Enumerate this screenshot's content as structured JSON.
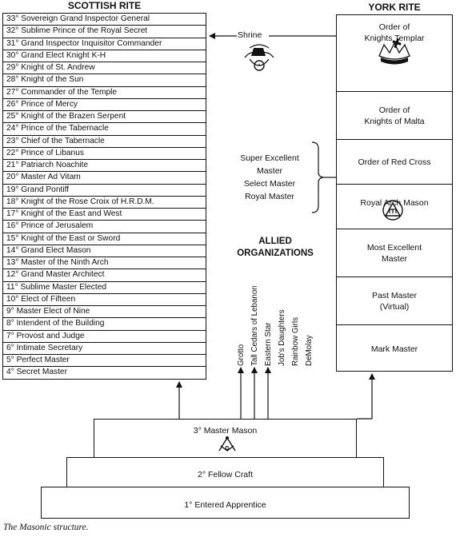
{
  "scottish_rite": {
    "title": "SCOTTISH RITE",
    "degrees": [
      "33° Sovereign Grand Inspector General",
      "32° Sublime Prince of the Royal Secret",
      "31° Grand Inspector Inquisitor Commander",
      "30° Grand Elect Knight K-H",
      "29° Knight of St. Andrew",
      "28° Knight of the Sun",
      "27° Commander of the Temple",
      "26° Prince of Mercy",
      "25° Knight of the Brazen Serpent",
      "24° Prince of the Tabernacle",
      "23° Chief of the Tabernacle",
      "22° Prince of Libanus",
      "21° Patriarch Noachite",
      "20° Master Ad Vitam",
      "19° Grand Pontiff",
      "18° Knight of the Rose Croix of H.R.D.M.",
      "17° Knight of the East and West",
      "16° Prince of Jerusalem",
      "15° Knight of the East or Sword",
      "14° Grand Elect Mason",
      "13° Master of the Ninth Arch",
      "12° Grand Master Architect",
      "11° Sublime Master Elected",
      "10° Elect of Fifteen",
      "9° Master Elect of Nine",
      "8° Intendent of the Building",
      "7° Provost and Judge",
      "6° Intimate Secretary",
      "5° Perfect Master",
      "4° Secret Master"
    ]
  },
  "york_rite": {
    "title": "YORK RITE",
    "cells": [
      {
        "line1": "Order of",
        "line2": "Knights Templar"
      },
      {
        "line1": "Order of",
        "line2": "Knights of Malta"
      },
      {
        "line1": "Order of Red Cross",
        "line2": ""
      },
      {
        "line1": "Royal Arch Mason",
        "line2": ""
      },
      {
        "line1": "Most Excellent",
        "line2": "Master"
      },
      {
        "line1": "Past Master",
        "line2": "(Virtual)"
      },
      {
        "line1": "Mark Master",
        "line2": ""
      }
    ]
  },
  "shrine": {
    "label": "Shrine"
  },
  "council": {
    "line1": "Super Excellent",
    "line2": "Master",
    "line3": "Select Master",
    "line4": "Royal Master"
  },
  "allied": {
    "title_line1": "ALLIED",
    "title_line2": "ORGANIZATIONS",
    "orgs": [
      "Grotto",
      "Tall Cedars of Lebanon",
      "Eastern Star",
      "Job's Daughters",
      "Rainbow Girls",
      "DeMolay"
    ]
  },
  "blue_lodge": {
    "master_mason": "3° Master Mason",
    "fellow_craft": "2° Fellow Craft",
    "entered_apprentice": "1° Entered Apprentice"
  },
  "caption": "The Masonic structure."
}
